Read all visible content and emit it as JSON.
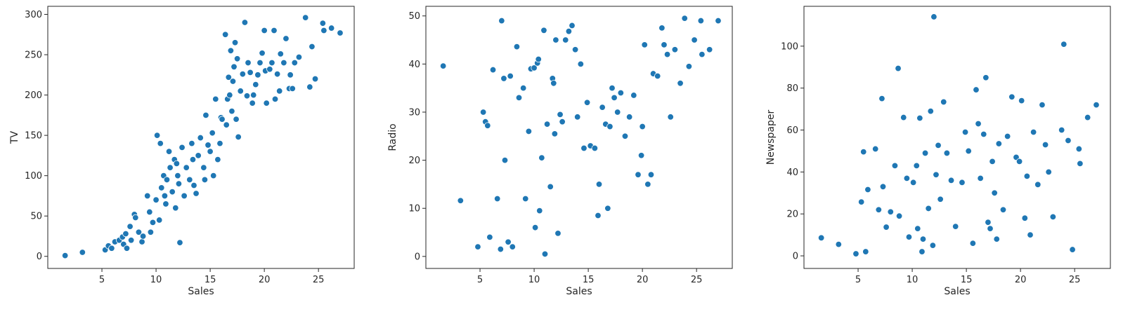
{
  "chart_data": [
    {
      "type": "scatter",
      "xlabel": "Sales",
      "ylabel": "TV",
      "xlim": [
        0,
        28.3
      ],
      "ylim": [
        -15,
        310
      ],
      "xticks": [
        5,
        10,
        15,
        20,
        25
      ],
      "yticks": [
        0,
        50,
        100,
        150,
        200,
        250,
        300
      ],
      "grid": false,
      "color": "#1f77b4",
      "series": [
        {
          "x": [
            1.6,
            3.2,
            5.3,
            5.6,
            5.9,
            6.2,
            6.6,
            6.9,
            7.0,
            7.2,
            7.3,
            7.6,
            7.7,
            8.0,
            8.1,
            8.4,
            8.7,
            8.8,
            9.2,
            9.4,
            9.5,
            9.7,
            10.0,
            10.1,
            10.3,
            10.4,
            10.5,
            10.7,
            10.8,
            10.9,
            11.0,
            11.2,
            11.3,
            11.5,
            11.7,
            11.8,
            11.9,
            12.0,
            12.1,
            12.2,
            12.4,
            12.6,
            12.8,
            13.1,
            13.3,
            13.4,
            13.5,
            13.7,
            13.9,
            14.1,
            14.4,
            14.5,
            14.6,
            14.8,
            15.0,
            15.2,
            15.3,
            15.5,
            15.7,
            15.9,
            16.0,
            16.1,
            16.4,
            16.5,
            16.6,
            16.7,
            16.8,
            16.9,
            17.0,
            17.1,
            17.2,
            17.3,
            17.4,
            17.5,
            17.6,
            17.8,
            18.0,
            18.2,
            18.4,
            18.5,
            18.7,
            18.9,
            19.0,
            19.2,
            19.4,
            19.6,
            19.8,
            20.0,
            20.1,
            20.2,
            20.5,
            20.7,
            20.9,
            21.0,
            21.2,
            21.4,
            21.5,
            21.8,
            22.0,
            22.3,
            22.4,
            22.6,
            22.8,
            23.2,
            23.8,
            24.2,
            24.4,
            24.7,
            25.4,
            25.5,
            26.2,
            27.0
          ],
          "y": [
            1,
            5,
            8,
            13,
            10,
            18,
            20,
            24,
            15,
            28,
            10,
            37,
            20,
            52,
            48,
            30,
            18,
            25,
            75,
            55,
            30,
            42,
            70,
            150,
            45,
            140,
            85,
            100,
            75,
            65,
            95,
            130,
            110,
            80,
            120,
            60,
            115,
            100,
            90,
            17,
            135,
            75,
            110,
            95,
            140,
            120,
            88,
            78,
            125,
            147,
            110,
            95,
            175,
            138,
            130,
            153,
            100,
            195,
            120,
            140,
            172,
            170,
            275,
            163,
            195,
            222,
            200,
            255,
            180,
            217,
            235,
            265,
            170,
            245,
            148,
            205,
            226,
            290,
            199,
            240,
            228,
            190,
            200,
            213,
            225,
            240,
            252,
            280,
            230,
            190,
            232,
            240,
            280,
            195,
            226,
            205,
            251,
            240,
            270,
            208,
            225,
            208,
            240,
            247,
            296,
            210,
            260,
            220,
            289,
            280,
            283,
            277
          ]
        }
      ]
    },
    {
      "type": "scatter",
      "xlabel": "Sales",
      "ylabel": "Radio",
      "xlim": [
        0,
        28.3
      ],
      "ylim": [
        -2.5,
        52
      ],
      "xticks": [
        5,
        10,
        15,
        20,
        25
      ],
      "yticks": [
        0,
        10,
        20,
        30,
        40,
        50
      ],
      "grid": false,
      "color": "#1f77b4",
      "series": [
        {
          "x": [
            1.6,
            3.2,
            4.8,
            5.3,
            5.5,
            5.7,
            5.9,
            6.2,
            6.6,
            6.9,
            7.0,
            7.2,
            7.3,
            7.6,
            7.8,
            8.0,
            8.4,
            8.6,
            9.0,
            9.2,
            9.5,
            9.7,
            10.0,
            10.1,
            10.3,
            10.4,
            10.5,
            10.7,
            10.9,
            11.0,
            11.2,
            11.5,
            11.7,
            11.8,
            11.9,
            12.0,
            12.2,
            12.4,
            12.6,
            12.9,
            13.2,
            13.5,
            13.8,
            14.0,
            14.3,
            14.6,
            14.9,
            15.2,
            15.6,
            15.9,
            16.0,
            16.3,
            16.6,
            16.8,
            17.0,
            17.2,
            17.4,
            17.7,
            18.0,
            18.4,
            18.8,
            19.2,
            19.6,
            19.9,
            20.0,
            20.2,
            20.5,
            20.8,
            21.0,
            21.4,
            21.8,
            22.0,
            22.3,
            22.6,
            23.0,
            23.5,
            23.9,
            24.3,
            24.8,
            25.4,
            25.5,
            26.2,
            27.0
          ],
          "y": [
            39.6,
            11.6,
            2.0,
            30.0,
            28.0,
            27.2,
            4.0,
            38.8,
            12.0,
            1.5,
            49.0,
            37.0,
            20.0,
            3.0,
            37.5,
            2.0,
            43.6,
            33.0,
            35.0,
            12.0,
            26.0,
            39.0,
            39.2,
            6.0,
            40.2,
            41.0,
            9.5,
            20.5,
            47.0,
            0.5,
            27.5,
            14.5,
            37.0,
            36.0,
            25.5,
            45.0,
            4.8,
            29.5,
            28.0,
            45.0,
            46.8,
            48.0,
            43.0,
            29.0,
            40.0,
            22.5,
            32.0,
            23.0,
            22.5,
            8.5,
            15.0,
            31.0,
            27.5,
            10.0,
            27.0,
            35.0,
            33.0,
            30.0,
            34.0,
            25.0,
            29.0,
            33.5,
            17.0,
            21.0,
            27.0,
            44.0,
            15.0,
            17.0,
            38.0,
            37.5,
            47.5,
            44.0,
            42.0,
            29.0,
            43.0,
            36.0,
            49.5,
            39.5,
            45.0,
            49.0,
            42.0,
            43.0,
            49.0
          ]
        }
      ]
    },
    {
      "type": "scatter",
      "xlabel": "Sales",
      "ylabel": "Newspaper",
      "xlim": [
        0,
        28.3
      ],
      "ylim": [
        -6,
        119
      ],
      "xticks": [
        5,
        10,
        15,
        20,
        25
      ],
      "yticks": [
        0,
        20,
        40,
        60,
        80,
        100
      ],
      "grid": false,
      "color": "#1f77b4",
      "series": [
        {
          "x": [
            1.6,
            3.2,
            4.8,
            5.3,
            5.5,
            5.7,
            5.9,
            6.6,
            6.9,
            7.2,
            7.3,
            7.6,
            8.0,
            8.4,
            8.7,
            8.8,
            9.2,
            9.5,
            9.7,
            10.1,
            10.4,
            10.5,
            10.7,
            10.9,
            11.0,
            11.2,
            11.5,
            11.7,
            11.9,
            12.0,
            12.2,
            12.4,
            12.6,
            12.9,
            13.2,
            13.6,
            14.0,
            14.6,
            14.9,
            15.2,
            15.6,
            15.9,
            16.1,
            16.3,
            16.6,
            16.8,
            17.0,
            17.2,
            17.4,
            17.6,
            17.8,
            18.0,
            18.4,
            18.8,
            19.2,
            19.6,
            19.9,
            20.1,
            20.4,
            20.6,
            20.9,
            21.2,
            21.6,
            22.0,
            22.3,
            22.6,
            23.0,
            23.8,
            24.0,
            24.4,
            24.8,
            25.4,
            25.5,
            26.2,
            27.0
          ],
          "y": [
            8.6,
            5.5,
            1.0,
            25.7,
            49.6,
            2.0,
            31.6,
            51.0,
            22.0,
            75.0,
            33.0,
            13.7,
            21.0,
            43.0,
            89.4,
            19.0,
            66.0,
            37.0,
            9.0,
            35.0,
            43.0,
            13.0,
            65.7,
            2.0,
            8.0,
            49.0,
            22.6,
            69.0,
            5.0,
            114.0,
            38.7,
            52.7,
            27.0,
            73.4,
            49.0,
            36.0,
            14.0,
            35.0,
            59.0,
            50.0,
            6.0,
            79.2,
            63.0,
            37.0,
            58.0,
            85.0,
            16.0,
            13.0,
            45.0,
            30.0,
            8.0,
            53.5,
            22.0,
            57.0,
            75.8,
            47.0,
            45.0,
            74.0,
            18.0,
            38.0,
            10.0,
            59.0,
            34.0,
            72.0,
            53.0,
            40.0,
            18.6,
            60.0,
            100.9,
            55.0,
            3.0,
            51.0,
            44.0,
            66.0,
            72.0
          ]
        }
      ]
    }
  ]
}
